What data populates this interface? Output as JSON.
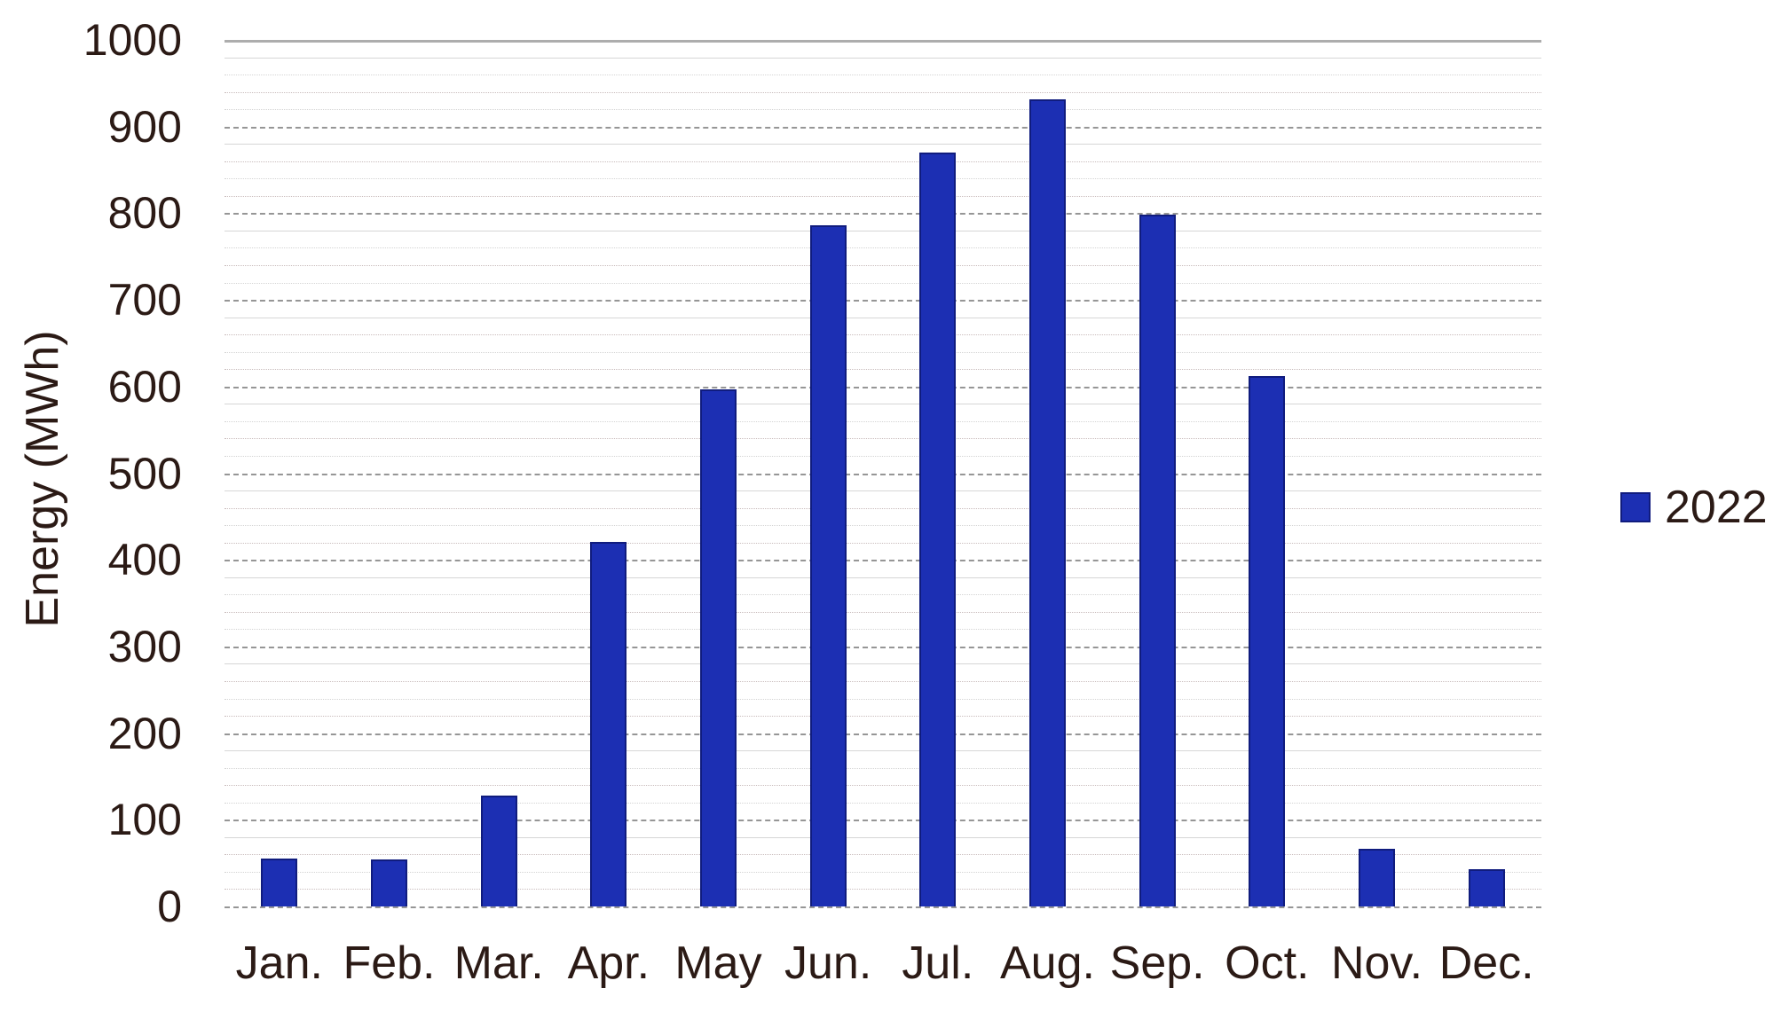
{
  "chart_data": {
    "type": "bar",
    "title": "",
    "xlabel": "",
    "ylabel": "Energy (MWh)",
    "ylim": [
      0,
      1000
    ],
    "y_major_step": 100,
    "y_minor_step": 20,
    "grid": "horizontal major and minor gridlines on",
    "legend_position": "right, outside plot",
    "yticks": [
      0,
      100,
      200,
      300,
      400,
      500,
      600,
      700,
      800,
      900,
      1000
    ],
    "categories": [
      "Jan.",
      "Feb.",
      "Mar.",
      "Apr.",
      "May",
      "Jun.",
      "Jul.",
      "Aug.",
      "Sep.",
      "Oct.",
      "Nov.",
      "Dec."
    ],
    "series": [
      {
        "name": "2022",
        "values": [
          55,
          54,
          128,
          421,
          597,
          786,
          870,
          931,
          798,
          612,
          67,
          43
        ]
      }
    ]
  },
  "colors": {
    "background": "#ffffff",
    "text": "#2b1a15",
    "bar_fill": "#1c2fb3",
    "bar_border": "#101c7e",
    "major_grid": "#969696",
    "top_line": "#adadad",
    "minor_grid_a": "#c9bcbc",
    "minor_grid_b": "#d4d4d4",
    "minor_grid_c": "#d6d6d6"
  }
}
